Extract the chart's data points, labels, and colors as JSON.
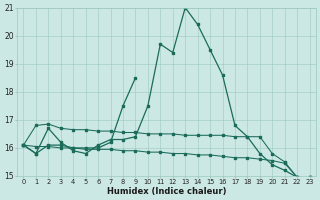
{
  "xlabel": "Humidex (Indice chaleur)",
  "xlim": [
    0,
    23
  ],
  "ylim": [
    15,
    21
  ],
  "yticks": [
    15,
    16,
    17,
    18,
    19,
    20,
    21
  ],
  "xticks": [
    0,
    1,
    2,
    3,
    4,
    5,
    6,
    7,
    8,
    9,
    10,
    11,
    12,
    13,
    14,
    15,
    16,
    17,
    18,
    19,
    20,
    21,
    22,
    23
  ],
  "bg_color": "#cce8e4",
  "grid_color": "#9cc8c0",
  "line_color": "#1a6b5a",
  "curve_main": [
    16.1,
    15.8,
    16.7,
    16.2,
    15.9,
    15.8,
    16.1,
    16.3,
    16.3,
    16.4,
    17.5,
    19.7,
    19.4,
    21.0,
    20.4,
    19.5,
    18.6,
    16.8,
    16.4,
    15.8,
    15.4,
    15.2,
    14.95,
    14.95
  ],
  "curve_partial": [
    16.1,
    15.8,
    16.1,
    16.1,
    16.0,
    16.0,
    16.0,
    16.2,
    17.5,
    18.5,
    null,
    null,
    null,
    null,
    null,
    null,
    null,
    null,
    null,
    null,
    null,
    null,
    null,
    null
  ],
  "curve_upper": [
    16.1,
    16.8,
    16.85,
    16.7,
    16.65,
    16.65,
    16.6,
    16.6,
    16.55,
    16.55,
    16.5,
    16.5,
    16.5,
    16.45,
    16.45,
    16.45,
    16.45,
    16.4,
    16.4,
    16.4,
    15.8,
    15.5,
    14.95,
    14.95
  ],
  "curve_lower": [
    16.1,
    16.05,
    16.05,
    16.0,
    16.0,
    15.95,
    15.95,
    15.95,
    15.9,
    15.9,
    15.85,
    15.85,
    15.8,
    15.8,
    15.75,
    15.75,
    15.7,
    15.65,
    15.65,
    15.6,
    15.55,
    15.45,
    14.95,
    14.95
  ]
}
